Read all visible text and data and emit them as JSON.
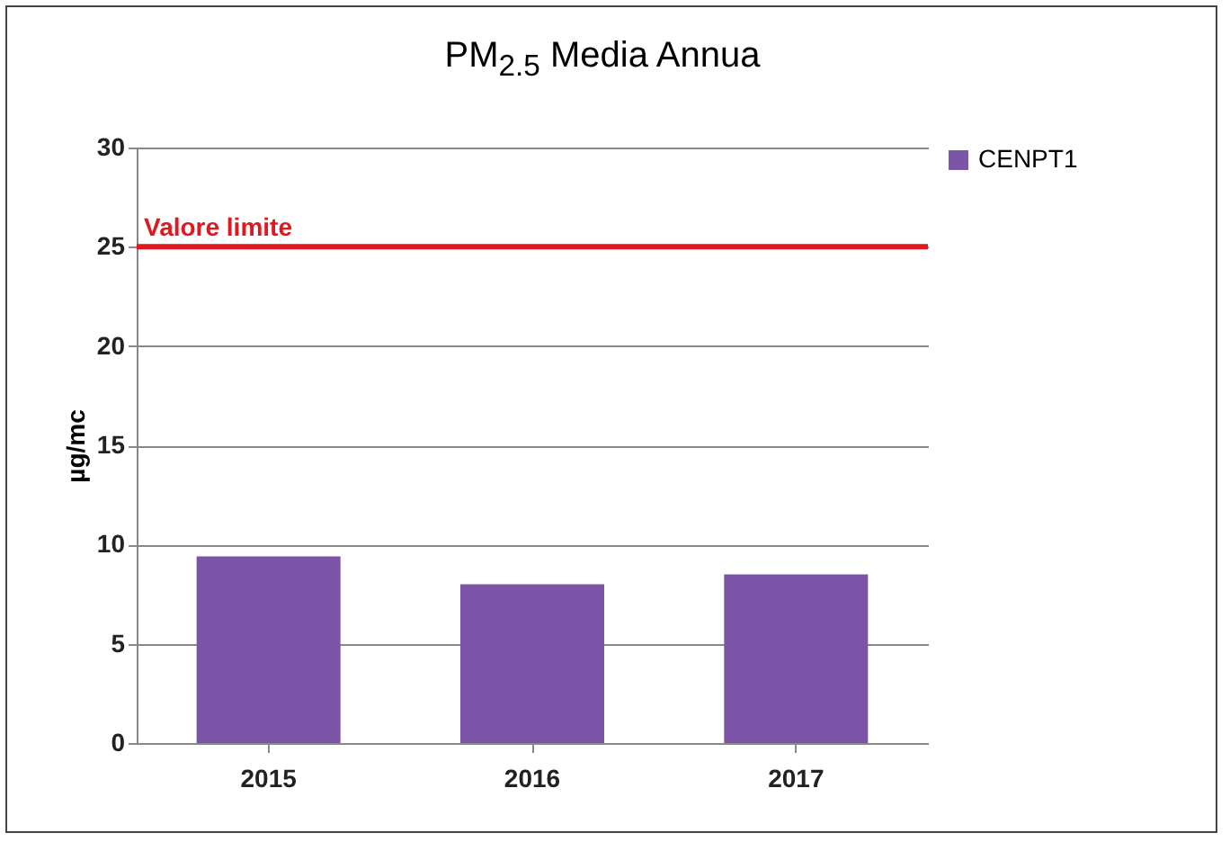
{
  "chart_data": {
    "type": "bar",
    "title": "PM$_{2.5}$ Media Annua",
    "ylabel": "µg/mc",
    "categories": [
      "2015",
      "2016",
      "2017"
    ],
    "series": [
      {
        "name": "CENPT1",
        "color": "#7b54a8",
        "values": [
          9.4,
          8.0,
          8.5
        ]
      }
    ],
    "ylim": [
      0,
      30
    ],
    "yticks": [
      0,
      5,
      10,
      15,
      20,
      25,
      30
    ],
    "grid": "y",
    "legend": "right",
    "ref_lines": [
      {
        "axis": "y",
        "value": 25,
        "label": "Valore limite",
        "color": "#e0191e"
      }
    ]
  }
}
